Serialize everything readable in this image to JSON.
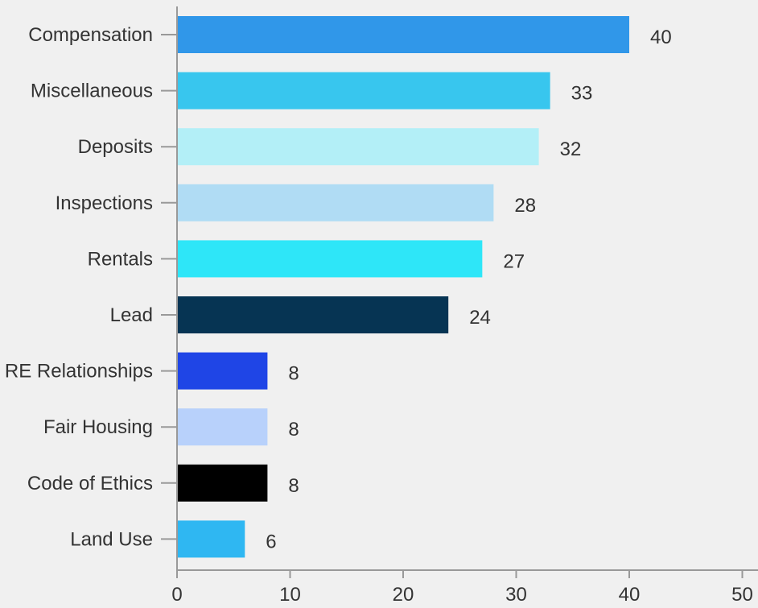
{
  "chart_data": {
    "type": "bar",
    "orientation": "horizontal",
    "categories": [
      "Compensation",
      "Miscellaneous",
      "Deposits",
      "Inspections",
      "Rentals",
      "Lead",
      "RE Relationships",
      "Fair Housing",
      "Code of Ethics",
      "Land Use"
    ],
    "values": [
      40,
      33,
      32,
      28,
      27,
      24,
      8,
      8,
      8,
      6
    ],
    "colors": [
      "#3097e9",
      "#38c6ee",
      "#b3eff7",
      "#b0dcf4",
      "#2ee6f8",
      "#063453",
      "#1f45e6",
      "#b8d1fb",
      "#000000",
      "#2fb7f2"
    ],
    "data_labels": [
      "40",
      "33",
      "32",
      "28",
      "27",
      "24",
      "8",
      "8",
      "8",
      "6"
    ],
    "xlim": [
      0,
      50
    ],
    "xticks": [
      0,
      10,
      20,
      30,
      40,
      50
    ],
    "xtick_labels": [
      "0",
      "10",
      "20",
      "30",
      "40",
      "50"
    ],
    "title": "",
    "xlabel": "",
    "ylabel": "",
    "grid": false,
    "legend": "none",
    "background": "#f0f0f0",
    "axis_color": "#999999",
    "text_color": "#333333"
  }
}
